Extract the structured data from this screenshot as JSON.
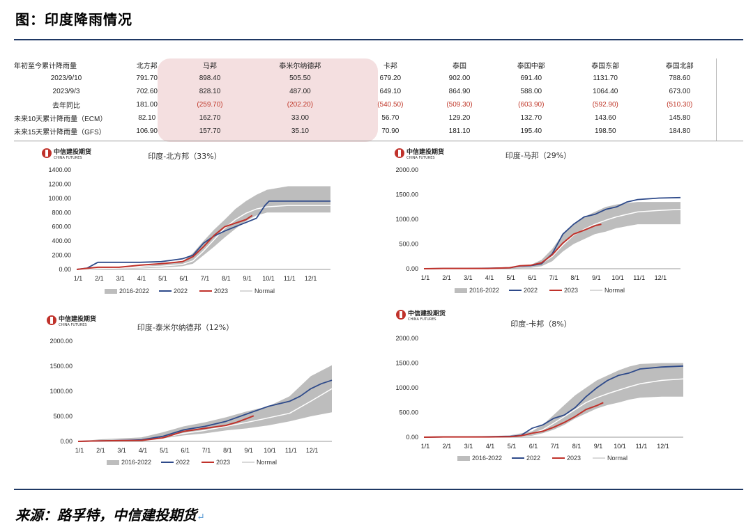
{
  "header": {
    "title": "图：印度降雨情况"
  },
  "footer": {
    "source": "来源：路孚特，中信建投期货",
    "mark": "↵"
  },
  "table": {
    "columns": [
      "年初至今累计降雨量",
      "北方邦",
      "马邦",
      "泰米尔纳德邦",
      "卡邦",
      "泰国",
      "泰国中部",
      "泰国东部",
      "泰国北部"
    ],
    "rows": [
      {
        "label": "2023/9/10",
        "values": [
          "791.70",
          "898.40",
          "505.50",
          "679.20",
          "902.00",
          "691.40",
          "1131.70",
          "788.60"
        ]
      },
      {
        "label": "2023/9/3",
        "values": [
          "702.60",
          "828.10",
          "487.00",
          "649.10",
          "864.90",
          "588.00",
          "1064.40",
          "673.00"
        ]
      },
      {
        "label": "去年同比",
        "values": [
          "181.00",
          "(259.70)",
          "(202.20)",
          "(540.50)",
          "(509.30)",
          "(603.90)",
          "(592.90)",
          "(510.30)"
        ]
      },
      {
        "label": "未来10天累计降雨量（ECM）",
        "values": [
          "82.10",
          "162.70",
          "33.00",
          "56.70",
          "129.20",
          "132.70",
          "143.60",
          "145.80"
        ]
      },
      {
        "label": "未来15天累计降雨量（GFS）",
        "values": [
          "106.90",
          "157.70",
          "35.10",
          "70.90",
          "181.10",
          "195.40",
          "198.50",
          "184.80"
        ]
      }
    ]
  },
  "logo": {
    "cn": "中信建投期货",
    "en": "CHINA FUTURES"
  },
  "colors": {
    "band": "#bdbdbd",
    "y2022": "#2e4a8a",
    "y2023": "#c0322b",
    "normal": "#ffffff"
  },
  "chart_data": [
    {
      "type": "line",
      "title": "印度-北方邦（33%）",
      "categories": [
        "1/1",
        "2/1",
        "3/1",
        "4/1",
        "5/1",
        "6/1",
        "7/1",
        "8/1",
        "9/1",
        "10/1",
        "11/1",
        "12/1"
      ],
      "yticks": [
        "0.00",
        "200.00",
        "400.00",
        "600.00",
        "800.00",
        "1000.00",
        "1200.00",
        "1400.00"
      ],
      "ylim": [
        0,
        1400
      ],
      "legend": [
        "2016-2022",
        "2022",
        "2023",
        "Normal"
      ],
      "band": {
        "x": [
          0,
          1,
          2,
          3,
          4,
          5,
          5.5,
          6,
          6.5,
          7,
          7.5,
          8,
          8.5,
          9,
          10,
          11,
          12
        ],
        "low": [
          0,
          5,
          10,
          15,
          25,
          45,
          80,
          200,
          320,
          450,
          570,
          680,
          760,
          800,
          800,
          800,
          800
        ],
        "high": [
          0,
          20,
          30,
          40,
          70,
          110,
          230,
          400,
          560,
          700,
          850,
          960,
          1050,
          1120,
          1170,
          1170,
          1170
        ]
      },
      "series": [
        {
          "name": "2022",
          "x": [
            0,
            0.5,
            1,
            1.5,
            2,
            3,
            4,
            5,
            5.5,
            6,
            6.5,
            7,
            7.5,
            8,
            8.5,
            8.9,
            9.1,
            9.3,
            10,
            11,
            12
          ],
          "y": [
            0,
            20,
            100,
            100,
            100,
            100,
            110,
            150,
            200,
            370,
            470,
            540,
            600,
            660,
            720,
            900,
            960,
            960,
            960,
            960,
            960
          ]
        },
        {
          "name": "2023",
          "x": [
            0,
            1,
            2,
            3,
            4,
            5,
            5.5,
            6,
            6.5,
            7,
            7.5,
            8,
            8.3
          ],
          "y": [
            0,
            30,
            30,
            60,
            80,
            110,
            180,
            320,
            480,
            600,
            650,
            700,
            760
          ]
        },
        {
          "name": "Normal",
          "x": [
            0,
            1,
            2,
            3,
            4,
            5,
            5.5,
            6,
            6.5,
            7,
            7.5,
            8,
            8.5,
            9,
            9.5,
            10,
            11,
            12
          ],
          "y": [
            0,
            10,
            20,
            30,
            45,
            70,
            120,
            260,
            420,
            580,
            700,
            790,
            850,
            880,
            890,
            900,
            900,
            900
          ]
        }
      ]
    },
    {
      "type": "line",
      "title": "印度-马邦（29%）",
      "categories": [
        "1/1",
        "2/1",
        "3/1",
        "4/1",
        "5/1",
        "6/1",
        "7/1",
        "8/1",
        "9/1",
        "10/1",
        "11/1",
        "12/1"
      ],
      "yticks": [
        "0.00",
        "500.00",
        "1000.00",
        "1500.00",
        "2000.00"
      ],
      "ylim": [
        0,
        2000
      ],
      "legend": [
        "2016-2022",
        "2022",
        "2023",
        "Normal"
      ],
      "band": {
        "x": [
          0,
          1,
          2,
          3,
          4,
          5,
          5.5,
          6,
          6.5,
          7,
          7.5,
          8,
          8.5,
          9,
          9.5,
          10,
          11,
          12
        ],
        "low": [
          0,
          0,
          0,
          0,
          5,
          20,
          50,
          150,
          350,
          500,
          600,
          700,
          750,
          820,
          860,
          900,
          900,
          900
        ],
        "high": [
          0,
          5,
          10,
          15,
          30,
          80,
          180,
          400,
          700,
          900,
          1050,
          1150,
          1250,
          1300,
          1330,
          1350,
          1350,
          1350
        ]
      },
      "series": [
        {
          "name": "2022",
          "x": [
            0,
            1,
            2,
            3,
            4,
            4.5,
            5,
            5.5,
            6,
            6.5,
            7,
            7.5,
            8,
            8.5,
            9,
            9.5,
            10,
            11,
            12
          ],
          "y": [
            0,
            5,
            5,
            10,
            20,
            50,
            60,
            100,
            300,
            700,
            900,
            1050,
            1100,
            1200,
            1250,
            1350,
            1400,
            1430,
            1440
          ]
        },
        {
          "name": "2023",
          "x": [
            0,
            1,
            2,
            3,
            4,
            4.5,
            5,
            5.5,
            6,
            6.5,
            7,
            7.5,
            8,
            8.3
          ],
          "y": [
            0,
            5,
            5,
            5,
            20,
            60,
            70,
            120,
            280,
            520,
            700,
            780,
            870,
            900
          ]
        },
        {
          "name": "Normal",
          "x": [
            0,
            1,
            2,
            3,
            4,
            5,
            5.5,
            6,
            6.5,
            7,
            7.5,
            8,
            8.5,
            9,
            9.5,
            10,
            11,
            12
          ],
          "y": [
            0,
            5,
            8,
            12,
            20,
            50,
            110,
            250,
            480,
            680,
            800,
            900,
            980,
            1050,
            1100,
            1150,
            1180,
            1200
          ]
        }
      ]
    },
    {
      "type": "line",
      "title": "印度-泰米尔纳德邦（12%）",
      "categories": [
        "1/1",
        "2/1",
        "3/1",
        "4/1",
        "5/1",
        "6/1",
        "7/1",
        "8/1",
        "9/1",
        "10/1",
        "11/1",
        "12/1"
      ],
      "yticks": [
        "0.00",
        "500.00",
        "1000.00",
        "1500.00",
        "2000.00"
      ],
      "ylim": [
        0,
        2000
      ],
      "legend": [
        "2016-2022",
        "2022",
        "2023",
        "Normal"
      ],
      "band": {
        "x": [
          0,
          1,
          2,
          3,
          4,
          5,
          6,
          7,
          8,
          9,
          10,
          11,
          12
        ],
        "low": [
          0,
          5,
          10,
          20,
          60,
          120,
          160,
          220,
          260,
          320,
          400,
          500,
          580
        ],
        "high": [
          0,
          40,
          60,
          80,
          180,
          300,
          380,
          480,
          600,
          700,
          900,
          1300,
          1520
        ]
      },
      "series": [
        {
          "name": "2022",
          "x": [
            0,
            1,
            2,
            3,
            4,
            5,
            6,
            7,
            8,
            9,
            10,
            10.5,
            11,
            11.5,
            12
          ],
          "y": [
            0,
            10,
            20,
            30,
            100,
            230,
            300,
            400,
            550,
            700,
            800,
            900,
            1050,
            1150,
            1220
          ]
        },
        {
          "name": "2023",
          "x": [
            0,
            1,
            2,
            3,
            4,
            5,
            6,
            7,
            7.5,
            8,
            8.3
          ],
          "y": [
            0,
            10,
            15,
            20,
            70,
            200,
            260,
            320,
            380,
            460,
            510
          ]
        },
        {
          "name": "Normal",
          "x": [
            0,
            1,
            2,
            3,
            4,
            5,
            6,
            7,
            8,
            9,
            10,
            11,
            12
          ],
          "y": [
            0,
            15,
            25,
            35,
            80,
            160,
            220,
            300,
            380,
            470,
            560,
            800,
            1050
          ]
        }
      ]
    },
    {
      "type": "line",
      "title": "印度-卡邦（8%）",
      "categories": [
        "1/1",
        "2/1",
        "3/1",
        "4/1",
        "5/1",
        "6/1",
        "7/1",
        "8/1",
        "9/1",
        "10/1",
        "11/1",
        "12/1"
      ],
      "yticks": [
        "0.00",
        "500.00",
        "1000.00",
        "1500.00",
        "2000.00"
      ],
      "ylim": [
        0,
        2000
      ],
      "legend": [
        "2016-2022",
        "2022",
        "2023",
        "Normal"
      ],
      "band": {
        "x": [
          0,
          1,
          2,
          3,
          4,
          5,
          5.5,
          6,
          6.5,
          7,
          7.5,
          8,
          8.5,
          9,
          9.5,
          10,
          11,
          12
        ],
        "low": [
          0,
          0,
          0,
          0,
          5,
          30,
          80,
          150,
          250,
          380,
          480,
          580,
          650,
          700,
          760,
          800,
          820,
          820
        ],
        "high": [
          0,
          5,
          10,
          20,
          40,
          120,
          250,
          450,
          650,
          850,
          1000,
          1150,
          1250,
          1350,
          1430,
          1480,
          1500,
          1500
        ]
      },
      "series": [
        {
          "name": "2022",
          "x": [
            0,
            1,
            2,
            3,
            4,
            4.5,
            5,
            5.5,
            6,
            6.5,
            7,
            7.5,
            8,
            8.5,
            9,
            9.5,
            10,
            11,
            12
          ],
          "y": [
            0,
            5,
            5,
            10,
            20,
            40,
            180,
            250,
            380,
            450,
            600,
            820,
            1000,
            1150,
            1250,
            1300,
            1380,
            1420,
            1440
          ]
        },
        {
          "name": "2023",
          "x": [
            0,
            1,
            2,
            3,
            4,
            4.5,
            5,
            5.5,
            6,
            6.5,
            7,
            7.5,
            8,
            8.3
          ],
          "y": [
            0,
            5,
            5,
            5,
            10,
            30,
            80,
            120,
            200,
            300,
            420,
            560,
            640,
            700
          ]
        },
        {
          "name": "Normal",
          "x": [
            0,
            1,
            2,
            3,
            4,
            5,
            5.5,
            6,
            6.5,
            7,
            7.5,
            8,
            8.5,
            9,
            9.5,
            10,
            11,
            12
          ],
          "y": [
            0,
            5,
            8,
            12,
            25,
            70,
            150,
            280,
            420,
            560,
            700,
            800,
            880,
            950,
            1020,
            1080,
            1150,
            1180
          ]
        }
      ]
    }
  ]
}
